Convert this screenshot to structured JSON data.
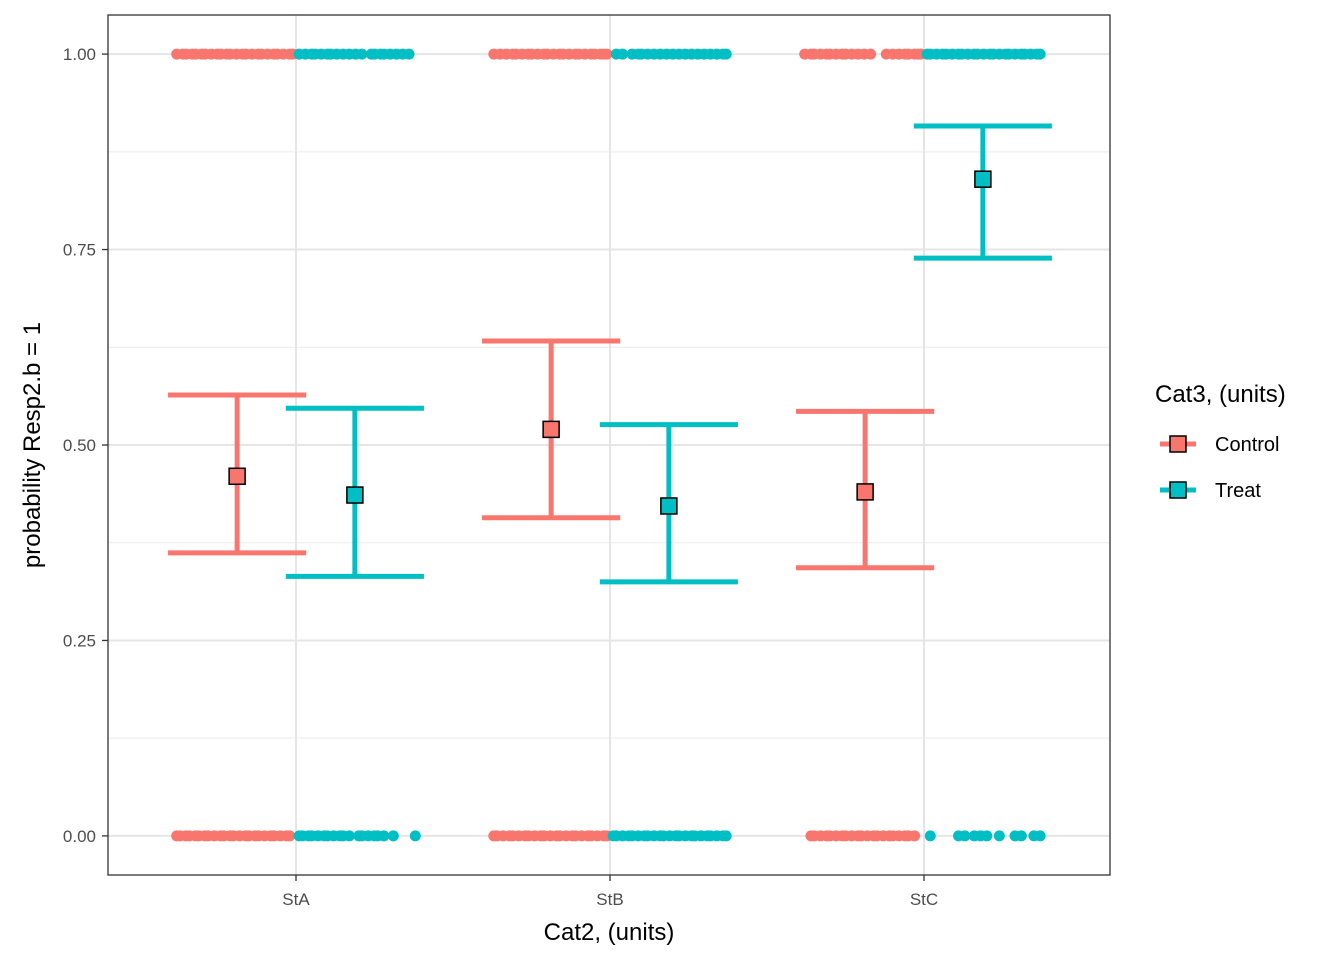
{
  "chart_data": {
    "type": "scatter",
    "title": "",
    "xlabel": "Cat2, (units)",
    "ylabel": "probability Resp2.b = 1",
    "categories": [
      "StA",
      "StB",
      "StC"
    ],
    "ylim": [
      -0.05,
      1.05
    ],
    "yticks": [
      0,
      0.25,
      0.5,
      0.75,
      1
    ],
    "ytick_labels": [
      "0.00",
      "0.25",
      "0.50",
      "0.75",
      "1.00"
    ],
    "grid": true,
    "legend": {
      "title": "Cat3, (units)",
      "position": "right",
      "entries": [
        "Control",
        "Treat"
      ]
    },
    "colors": {
      "Control": "#F8766D",
      "Treat": "#00BFC4"
    },
    "series": [
      {
        "name": "Control",
        "estimates": [
          {
            "category": "StA",
            "estimate": 0.46,
            "lower": 0.362,
            "upper": 0.564
          },
          {
            "category": "StB",
            "estimate": 0.52,
            "lower": 0.407,
            "upper": 0.633
          },
          {
            "category": "StC",
            "estimate": 0.44,
            "lower": 0.343,
            "upper": 0.543
          }
        ],
        "raw_points": [
          {
            "category": "StA",
            "y": 1,
            "x_offsets": [
              -0.38,
              -0.36,
              -0.35,
              -0.33,
              -0.32,
              -0.3,
              -0.29,
              -0.27,
              -0.25,
              -0.24,
              -0.22,
              -0.21,
              -0.19,
              -0.17,
              -0.16,
              -0.14,
              -0.12,
              -0.11,
              -0.09,
              -0.07,
              -0.06,
              -0.04,
              -0.02,
              -0.01
            ]
          },
          {
            "category": "StA",
            "y": 0,
            "x_offsets": [
              -0.38,
              -0.37,
              -0.35,
              -0.34,
              -0.32,
              -0.31,
              -0.29,
              -0.28,
              -0.26,
              -0.24,
              -0.23,
              -0.21,
              -0.2,
              -0.18,
              -0.16,
              -0.15,
              -0.13,
              -0.12,
              -0.1,
              -0.08,
              -0.07,
              -0.05,
              -0.03,
              -0.02
            ]
          },
          {
            "category": "StB",
            "y": 1,
            "x_offsets": [
              -0.37,
              -0.35,
              -0.33,
              -0.31,
              -0.3,
              -0.28,
              -0.26,
              -0.25,
              -0.23,
              -0.21,
              -0.2,
              -0.18,
              -0.16,
              -0.15,
              -0.13,
              -0.11,
              -0.1,
              -0.08,
              -0.06,
              -0.05,
              -0.03,
              -0.02,
              -0.01
            ]
          },
          {
            "category": "StB",
            "y": 0,
            "x_offsets": [
              -0.37,
              -0.36,
              -0.34,
              -0.32,
              -0.31,
              -0.29,
              -0.27,
              -0.26,
              -0.24,
              -0.22,
              -0.21,
              -0.19,
              -0.17,
              -0.16,
              -0.14,
              -0.12,
              -0.11,
              -0.09,
              -0.07,
              -0.06,
              -0.04,
              -0.02,
              -0.01
            ]
          },
          {
            "category": "StC",
            "y": 1,
            "x_offsets": [
              -0.38,
              -0.36,
              -0.35,
              -0.33,
              -0.31,
              -0.3,
              -0.28,
              -0.26,
              -0.25,
              -0.23,
              -0.21,
              -0.19,
              -0.17,
              -0.12,
              -0.1,
              -0.08,
              -0.06,
              -0.05,
              -0.03,
              -0.02,
              -0.01
            ]
          },
          {
            "category": "StC",
            "y": 0,
            "x_offsets": [
              -0.36,
              -0.35,
              -0.33,
              -0.31,
              -0.3,
              -0.28,
              -0.26,
              -0.25,
              -0.23,
              -0.21,
              -0.2,
              -0.18,
              -0.16,
              -0.15,
              -0.13,
              -0.11,
              -0.1,
              -0.08,
              -0.06,
              -0.05,
              -0.03
            ]
          }
        ]
      },
      {
        "name": "Treat",
        "estimates": [
          {
            "category": "StA",
            "estimate": 0.436,
            "lower": 0.332,
            "upper": 0.547
          },
          {
            "category": "StB",
            "estimate": 0.422,
            "lower": 0.325,
            "upper": 0.526
          },
          {
            "category": "StC",
            "estimate": 0.84,
            "lower": 0.739,
            "upper": 0.908
          }
        ],
        "raw_points": [
          {
            "category": "StA",
            "y": 1,
            "x_offsets": [
              0.01,
              0.03,
              0.05,
              0.06,
              0.08,
              0.1,
              0.11,
              0.13,
              0.15,
              0.17,
              0.19,
              0.21,
              0.24,
              0.25,
              0.27,
              0.28,
              0.3,
              0.32,
              0.34,
              0.36
            ]
          },
          {
            "category": "StA",
            "y": 0,
            "x_offsets": [
              0.01,
              0.02,
              0.04,
              0.05,
              0.07,
              0.09,
              0.1,
              0.12,
              0.14,
              0.15,
              0.17,
              0.2,
              0.21,
              0.23,
              0.25,
              0.26,
              0.28,
              0.31,
              0.38
            ]
          },
          {
            "category": "StB",
            "y": 1,
            "x_offsets": [
              0.02,
              0.04,
              0.07,
              0.09,
              0.1,
              0.12,
              0.14,
              0.16,
              0.18,
              0.2,
              0.22,
              0.24,
              0.26,
              0.28,
              0.3,
              0.32,
              0.34,
              0.36,
              0.37
            ]
          },
          {
            "category": "StB",
            "y": 0,
            "x_offsets": [
              0.01,
              0.02,
              0.04,
              0.06,
              0.07,
              0.09,
              0.11,
              0.12,
              0.14,
              0.16,
              0.17,
              0.19,
              0.21,
              0.22,
              0.24,
              0.26,
              0.27,
              0.29,
              0.31,
              0.32,
              0.34,
              0.36,
              0.37
            ]
          },
          {
            "category": "StC",
            "y": 1,
            "x_offsets": [
              0.01,
              0.02,
              0.04,
              0.06,
              0.07,
              0.09,
              0.11,
              0.12,
              0.14,
              0.16,
              0.17,
              0.19,
              0.21,
              0.22,
              0.24,
              0.26,
              0.27,
              0.29,
              0.31,
              0.32,
              0.34,
              0.36,
              0.37
            ]
          },
          {
            "category": "StC",
            "y": 0,
            "x_offsets": [
              0.02,
              0.11,
              0.13,
              0.16,
              0.18,
              0.2,
              0.24,
              0.29,
              0.31,
              0.35,
              0.37
            ]
          }
        ]
      }
    ]
  }
}
